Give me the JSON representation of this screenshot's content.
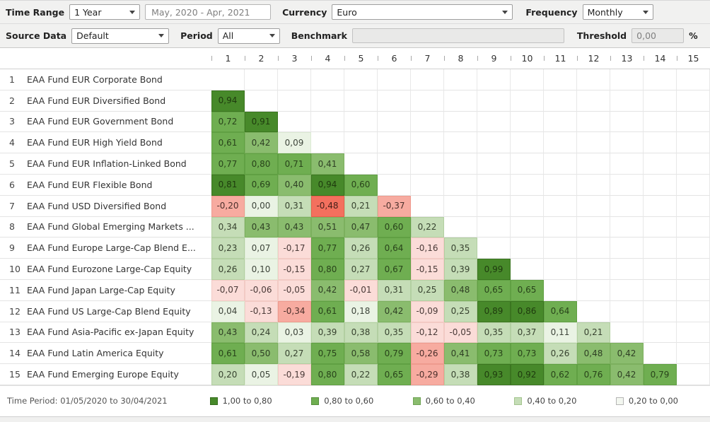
{
  "toolbar": {
    "row1": {
      "time_range_label": "Time Range",
      "time_range_value": "1 Year",
      "date_range_value": "May, 2020 - Apr, 2021",
      "currency_label": "Currency",
      "currency_value": "Euro",
      "frequency_label": "Frequency",
      "frequency_value": "Monthly"
    },
    "row2": {
      "source_data_label": "Source Data",
      "source_data_value": "Default",
      "period_label": "Period",
      "period_value": "All",
      "benchmark_label": "Benchmark",
      "benchmark_value": "",
      "threshold_label": "Threshold",
      "threshold_value": "0,00",
      "percent_label": "%"
    }
  },
  "matrix": {
    "column_headers": [
      "1",
      "2",
      "3",
      "4",
      "5",
      "6",
      "7",
      "8",
      "9",
      "10",
      "11",
      "12",
      "13",
      "14",
      "15"
    ],
    "rows": [
      {
        "index": "1",
        "name": "EAA Fund EUR Corporate Bond",
        "values": []
      },
      {
        "index": "2",
        "name": "EAA Fund EUR Diversified Bond",
        "values": [
          "0,94"
        ]
      },
      {
        "index": "3",
        "name": "EAA Fund EUR Government Bond",
        "values": [
          "0,72",
          "0,91"
        ]
      },
      {
        "index": "4",
        "name": "EAA Fund EUR High Yield Bond",
        "values": [
          "0,61",
          "0,42",
          "0,09"
        ]
      },
      {
        "index": "5",
        "name": "EAA Fund EUR Inflation-Linked Bond",
        "values": [
          "0,77",
          "0,80",
          "0,71",
          "0,41"
        ]
      },
      {
        "index": "6",
        "name": "EAA Fund EUR Flexible Bond",
        "values": [
          "0,81",
          "0,69",
          "0,40",
          "0,94",
          "0,60"
        ]
      },
      {
        "index": "7",
        "name": "EAA Fund USD Diversified Bond",
        "values": [
          "-0,20",
          "0,00",
          "0,31",
          "-0,48",
          "0,21",
          "-0,37"
        ]
      },
      {
        "index": "8",
        "name": "EAA Fund Global Emerging Markets ...",
        "values": [
          "0,34",
          "0,43",
          "0,43",
          "0,51",
          "0,47",
          "0,60",
          "0,22"
        ]
      },
      {
        "index": "9",
        "name": "EAA Fund Europe Large-Cap Blend E...",
        "values": [
          "0,23",
          "0,07",
          "-0,17",
          "0,77",
          "0,26",
          "0,64",
          "-0,16",
          "0,35"
        ]
      },
      {
        "index": "10",
        "name": "EAA Fund Eurozone Large-Cap Equity",
        "values": [
          "0,26",
          "0,10",
          "-0,15",
          "0,80",
          "0,27",
          "0,67",
          "-0,15",
          "0,39",
          "0,99"
        ]
      },
      {
        "index": "11",
        "name": "EAA Fund Japan Large-Cap Equity",
        "values": [
          "-0,07",
          "-0,06",
          "-0,05",
          "0,42",
          "-0,01",
          "0,31",
          "0,25",
          "0,48",
          "0,65",
          "0,65"
        ]
      },
      {
        "index": "12",
        "name": "EAA Fund US Large-Cap Blend Equity",
        "values": [
          "0,04",
          "-0,13",
          "-0,34",
          "0,61",
          "0,18",
          "0,42",
          "-0,09",
          "0,25",
          "0,89",
          "0,86",
          "0,64"
        ]
      },
      {
        "index": "13",
        "name": "EAA Fund Asia-Pacific ex-Japan Equity",
        "values": [
          "0,43",
          "0,24",
          "0,03",
          "0,39",
          "0,38",
          "0,35",
          "-0,12",
          "-0,05",
          "0,35",
          "0,37",
          "0,11",
          "0,21"
        ]
      },
      {
        "index": "14",
        "name": "EAA Fund Latin America Equity",
        "values": [
          "0,61",
          "0,50",
          "0,27",
          "0,75",
          "0,58",
          "0,79",
          "-0,26",
          "0,41",
          "0,73",
          "0,73",
          "0,26",
          "0,48",
          "0,42"
        ]
      },
      {
        "index": "15",
        "name": "EAA Fund Emerging Europe Equity",
        "values": [
          "0,20",
          "0,05",
          "-0,19",
          "0,80",
          "0,22",
          "0,65",
          "-0,29",
          "0,38",
          "0,93",
          "0,92",
          "0,62",
          "0,76",
          "0,42",
          "0,79"
        ]
      }
    ]
  },
  "footer": {
    "time_period": "Time Period: 01/05/2020 to 30/04/2021",
    "legend": [
      {
        "label": "1,00 to 0,80",
        "color": "#47892a",
        "border": "#356d1d"
      },
      {
        "label": "0,80 to 0,60",
        "color": "#6fae51",
        "border": "#578f3c"
      },
      {
        "label": "0,60 to 0,40",
        "color": "#8abc6e",
        "border": "#6fa355"
      },
      {
        "label": "0,40 to 0,20",
        "color": "#c5ddb7",
        "border": "#a3c48e"
      },
      {
        "label": "0,20 to 0,00",
        "color": "#f3f7f0",
        "border": "#b5b5b5"
      }
    ]
  },
  "colors": {
    "bucket_1_00_0_80": "#47892a",
    "bucket_0_80_0_60": "#6fae51",
    "bucket_0_60_0_40": "#8abc6e",
    "bucket_0_40_0_20": "#c5ddb7",
    "bucket_0_20_0_00": "#eaf3e4",
    "bucket_neg_0_20": "#fbdcd8",
    "bucket_neg_0_40": "#f7aba0",
    "bucket_neg_0_60": "#f3705e"
  }
}
